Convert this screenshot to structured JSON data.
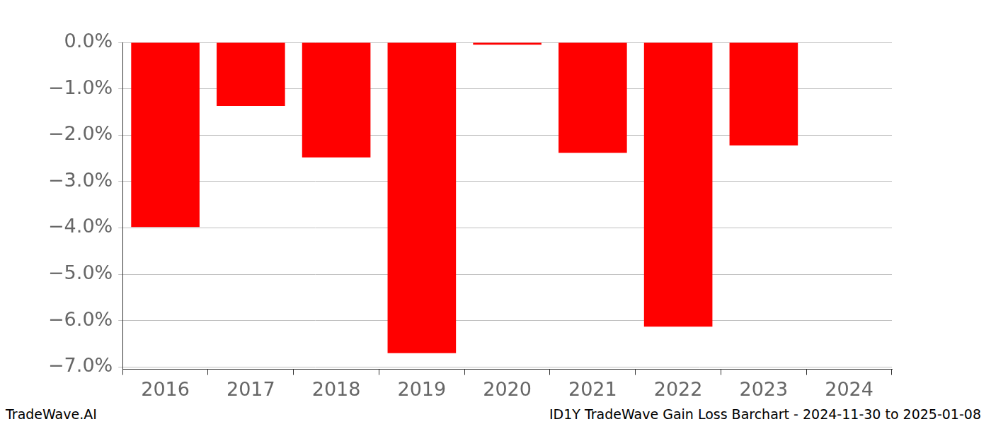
{
  "chart_data": {
    "type": "bar",
    "title": "ID1Y TradeWave Gain Loss Barchart - 2024-11-30 to 2025-01-08",
    "annotations": [
      "TradeWave.AI"
    ],
    "categories": [
      "2016",
      "2017",
      "2018",
      "2019",
      "2020",
      "2021",
      "2022",
      "2023",
      "2024"
    ],
    "values": [
      -3.98,
      -1.37,
      -2.48,
      -6.7,
      -0.05,
      -2.38,
      -6.13,
      -2.22,
      null
    ],
    "color": "#ff0000",
    "ylim": [
      -7.05,
      0
    ],
    "yticks": [
      {
        "value": 0,
        "label": "0.0%"
      },
      {
        "value": -1,
        "label": "−1.0%"
      },
      {
        "value": -2,
        "label": "−2.0%"
      },
      {
        "value": -3,
        "label": "−3.0%"
      },
      {
        "value": -4,
        "label": "−4.0%"
      },
      {
        "value": -5,
        "label": "−5.0%"
      },
      {
        "value": -6,
        "label": "−6.0%"
      },
      {
        "value": -7,
        "label": "−7.0%"
      }
    ],
    "grid": true
  }
}
